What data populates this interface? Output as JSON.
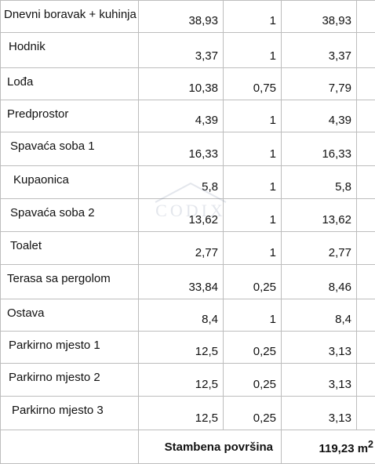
{
  "rooms": [
    {
      "name": "Dnevni boravak + kuhinja",
      "area": "38,93",
      "factor": "1",
      "net": "38,93",
      "indent": 4
    },
    {
      "name": "Hodnik",
      "area": "3,37",
      "factor": "1",
      "net": "3,37",
      "indent": 10
    },
    {
      "name": "Lođa",
      "area": "10,38",
      "factor": "0,75",
      "net": "7,79",
      "indent": 8
    },
    {
      "name": "Predprostor",
      "area": "4,39",
      "factor": "1",
      "net": "4,39",
      "indent": 8
    },
    {
      "name": "Spavaća soba 1",
      "area": "16,33",
      "factor": "1",
      "net": "16,33",
      "indent": 12
    },
    {
      "name": "Kupaonica",
      "area": "5,8",
      "factor": "1",
      "net": "5,8",
      "indent": 16
    },
    {
      "name": "Spavaća soba 2",
      "area": "13,62",
      "factor": "1",
      "net": "13,62",
      "indent": 12
    },
    {
      "name": "Toalet",
      "area": "2,77",
      "factor": "1",
      "net": "2,77",
      "indent": 12
    },
    {
      "name": "Terasa sa pergolom",
      "area": "33,84",
      "factor": "0,25",
      "net": "8,46",
      "indent": 8
    },
    {
      "name": "Ostava",
      "area": "8,4",
      "factor": "1",
      "net": "8,4",
      "indent": 8
    },
    {
      "name": "Parkirno mjesto 1",
      "area": "12,5",
      "factor": "0,25",
      "net": "3,13",
      "indent": 10
    },
    {
      "name": "Parkirno mjesto 2",
      "area": "12,5",
      "factor": "0,25",
      "net": "3,13",
      "indent": 10
    },
    {
      "name": "Parkirno mjesto 3",
      "area": "12,5",
      "factor": "0,25",
      "net": "3,13",
      "indent": 14
    }
  ],
  "total": {
    "label": "Stambena površina",
    "value": "119,23 m",
    "unit_sup": "2"
  },
  "watermark": {
    "text": "CODIX",
    "color": "#6b7a99"
  }
}
